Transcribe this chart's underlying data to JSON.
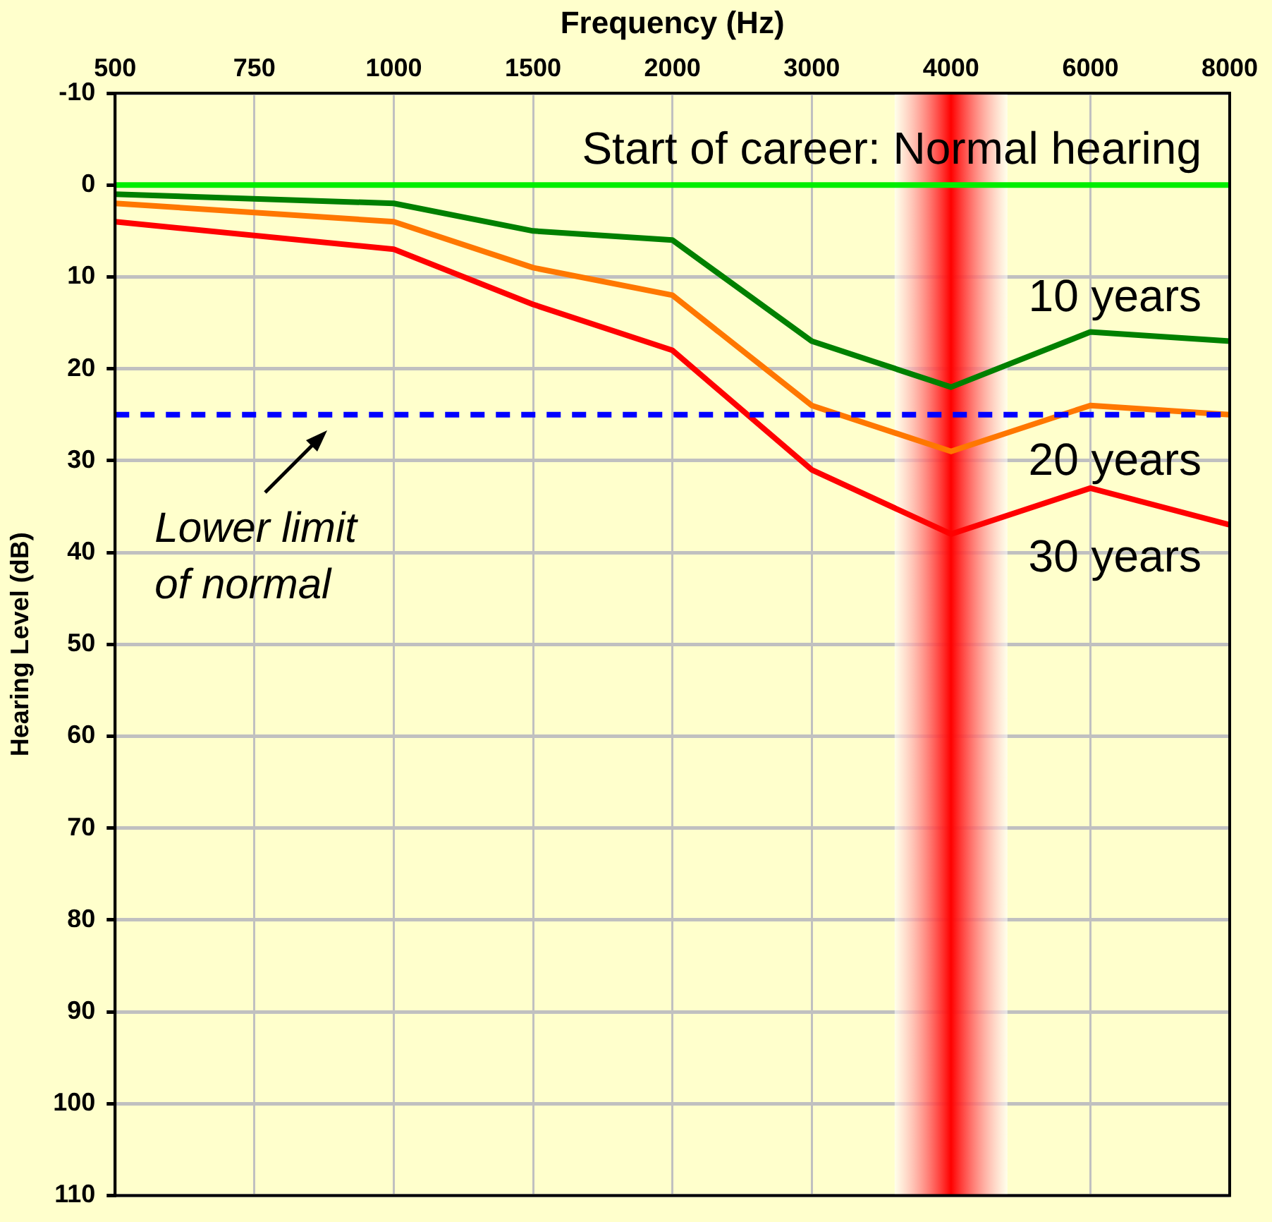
{
  "chart_data": {
    "type": "line",
    "xlabel": "Frequency (Hz)",
    "ylabel": "Hearing Level (dB)",
    "categories": [
      "500",
      "750",
      "1000",
      "1500",
      "2000",
      "3000",
      "4000",
      "6000",
      "8000"
    ],
    "series": [
      {
        "name": "Start of career: Normal hearing",
        "color": "#00ee00",
        "values": [
          0,
          0,
          0,
          0,
          0,
          0,
          0,
          0,
          0
        ]
      },
      {
        "name": "10 years",
        "color": "#008000",
        "values": [
          1,
          null,
          2,
          5,
          6,
          17,
          22,
          16,
          17
        ]
      },
      {
        "name": "20 years",
        "color": "#ff7700",
        "values": [
          2,
          null,
          4,
          9,
          12,
          24,
          29,
          24,
          25
        ]
      },
      {
        "name": "30 years",
        "color": "#ff0000",
        "values": [
          4,
          null,
          7,
          13,
          18,
          31,
          38,
          33,
          37
        ]
      }
    ],
    "ylim": [
      110,
      -10
    ],
    "yticks": [
      -10,
      0,
      10,
      20,
      30,
      40,
      50,
      60,
      70,
      80,
      90,
      100,
      110
    ],
    "ref_lines": [
      {
        "axis": "y",
        "value": 25,
        "label": "Lower limit of normal",
        "color": "#0000ff",
        "line_style": "dashed"
      },
      {
        "axis": "x",
        "value": "4000",
        "color": "#ff0000"
      }
    ],
    "grid": true,
    "legend": false,
    "marker": "none",
    "line_style": "solid"
  }
}
